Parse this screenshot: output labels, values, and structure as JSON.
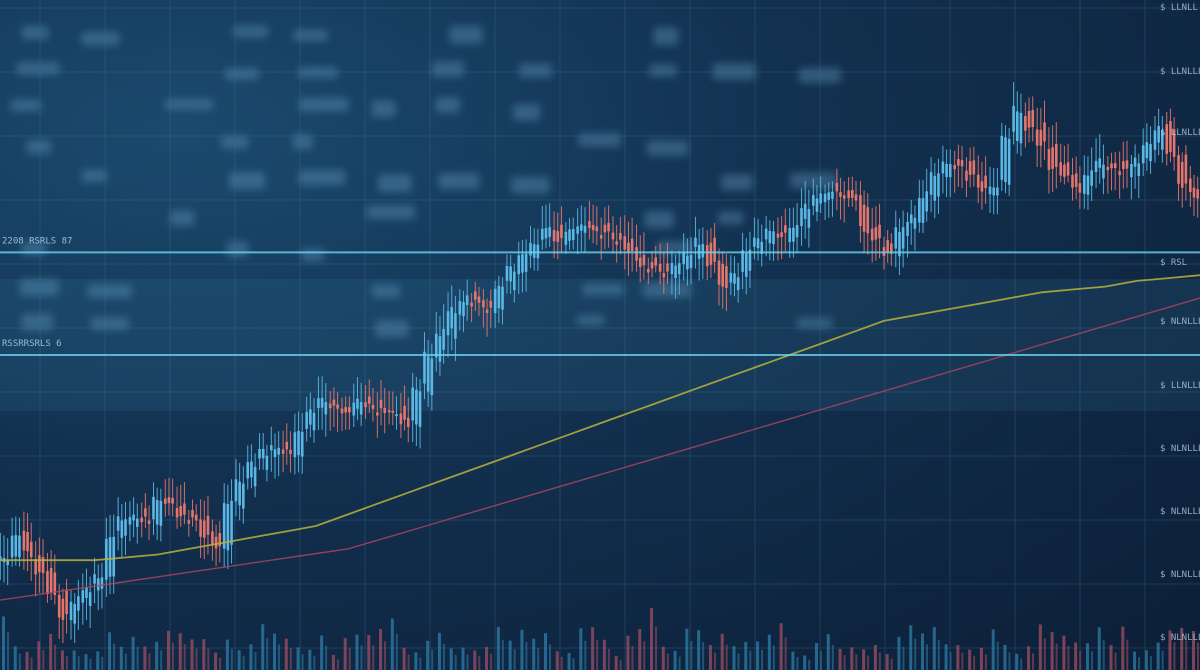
{
  "chart_data": {
    "type": "candlestick",
    "title": "",
    "xlabel": "",
    "ylabel": "",
    "grid": true,
    "colors": {
      "up": "#5ab8e6",
      "down": "#e8756b",
      "ma_fast": "#b9b33a",
      "ma_slow": "#a8455e",
      "band": "#6ad3f0",
      "volume_up": "#2f7ea8",
      "volume_down": "#a24f63",
      "background": "#0f2640"
    },
    "ylim": [
      0,
      100
    ],
    "band_levels": [
      68,
      50
    ],
    "band_labels": [
      "2208 RSRLS 87",
      "RSSRRSRLS 6"
    ],
    "price_axis_labels": [
      "$ LLNLL",
      "$ LLNLLLL",
      "$ LLNLLLL",
      "$ RSL",
      "$ NLNLLLL",
      "$ LLNLLLL",
      "$ NLNLLLL",
      "$ NLNLLLL",
      "$ NLNLLLL",
      "$ NLNLLLL"
    ],
    "candles": {
      "close": [
        14,
        18,
        15,
        12,
        8,
        4,
        7,
        9,
        11,
        18,
        21,
        22,
        21,
        25,
        24,
        22,
        21,
        18,
        16,
        24,
        28,
        31,
        33,
        34,
        33,
        37,
        40,
        42,
        41,
        40,
        42,
        41,
        40,
        40,
        38,
        44,
        50,
        54,
        58,
        60,
        59,
        58,
        62,
        65,
        68,
        70,
        72,
        70,
        72,
        73,
        72,
        71,
        70,
        68,
        66,
        65,
        64,
        66,
        68,
        70,
        66,
        62,
        64,
        68,
        70,
        72,
        71,
        73,
        76,
        78,
        79,
        78,
        77,
        72,
        70,
        68,
        72,
        74,
        78,
        82,
        84,
        83,
        81,
        79,
        80,
        88,
        93,
        90,
        87,
        83,
        81,
        79,
        82,
        84,
        83,
        82,
        84,
        87,
        90,
        85,
        80,
        78
      ]
    },
    "ma_fast": [
      14,
      14,
      14,
      14,
      14.5,
      15,
      16,
      17,
      18,
      19,
      20,
      22,
      24,
      26,
      28,
      30,
      32,
      34,
      36,
      38,
      40,
      42,
      44,
      46,
      48,
      50,
      52,
      54,
      56,
      57,
      58,
      59,
      60,
      61,
      61.5,
      62,
      63,
      63.5,
      64
    ],
    "ma_slow": [
      7,
      8,
      9,
      10,
      11,
      12,
      13,
      14,
      15,
      16,
      18,
      20,
      22,
      24,
      26,
      28,
      30,
      32,
      34,
      36,
      38,
      40,
      42,
      44,
      46,
      48,
      50,
      52,
      54,
      56,
      58,
      60
    ]
  }
}
